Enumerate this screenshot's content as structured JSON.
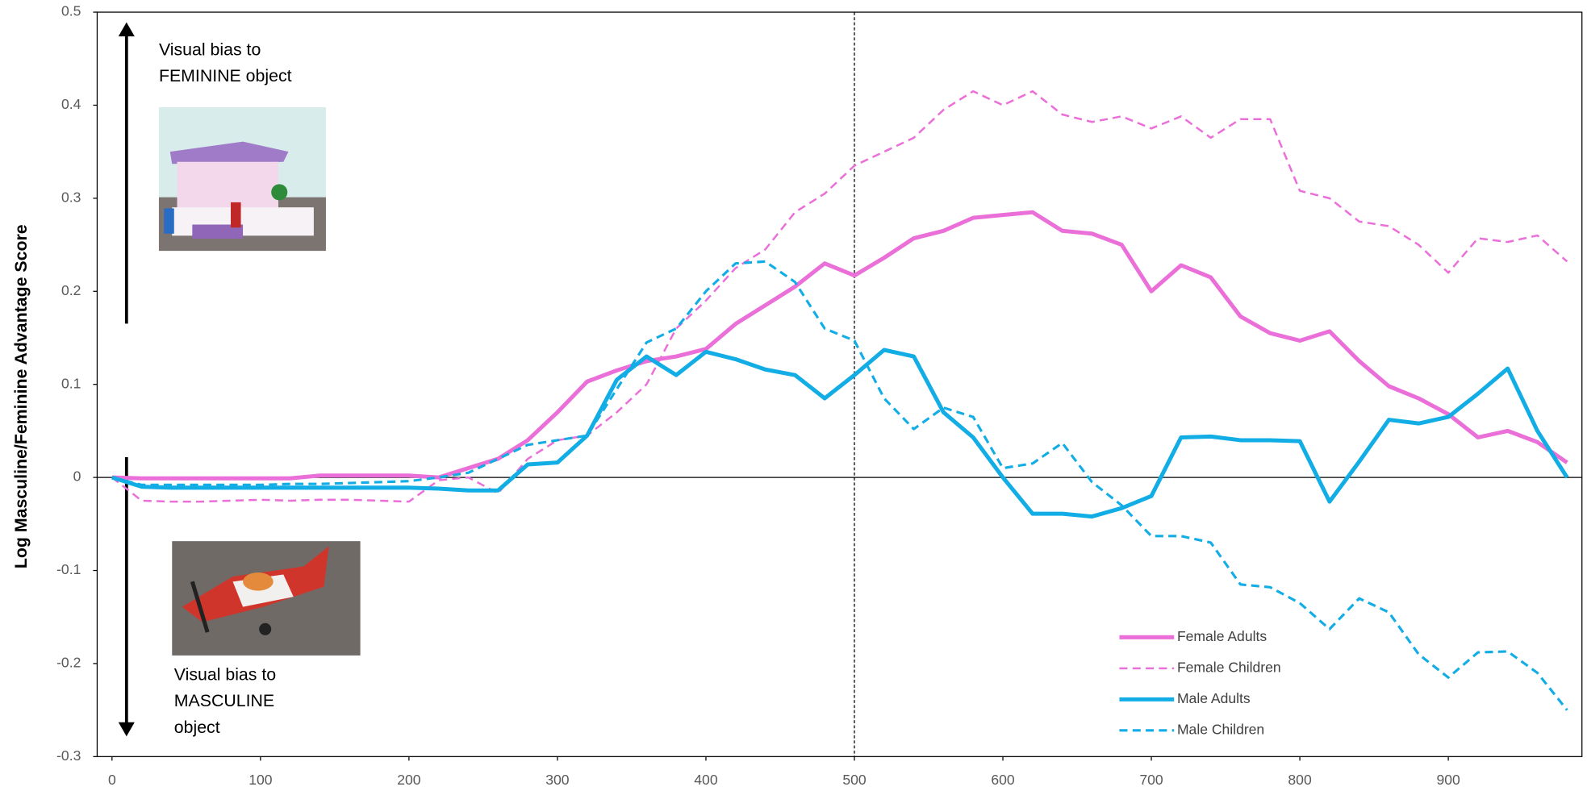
{
  "chart_data": {
    "type": "line",
    "y_label": "Log Masculine/Feminine Advantage Score",
    "x": [
      0,
      20,
      40,
      60,
      80,
      100,
      120,
      140,
      160,
      180,
      200,
      220,
      240,
      260,
      280,
      300,
      320,
      340,
      360,
      380,
      400,
      420,
      440,
      460,
      480,
      500,
      520,
      540,
      560,
      580,
      600,
      620,
      640,
      660,
      680,
      700,
      720,
      740,
      760,
      780,
      800,
      820,
      840,
      860,
      880,
      900,
      920,
      940,
      960,
      980
    ],
    "xlim": [
      -10,
      990
    ],
    "xticks": [
      0,
      100,
      200,
      300,
      400,
      500,
      600,
      700,
      800,
      900
    ],
    "ylim": [
      -0.3,
      0.5
    ],
    "yticks": [
      -0.3,
      -0.2,
      -0.1,
      0,
      0.1,
      0.2,
      0.3,
      0.4,
      0.5
    ],
    "vline": 500,
    "legend": "lower right",
    "annotations": [
      {
        "lines": [
          "Visual bias to",
          "FEMININE object"
        ]
      },
      {
        "lines": [
          "Visual bias to",
          "MASCULINE",
          "object"
        ]
      }
    ],
    "series": [
      {
        "name": "Female Adults",
        "color": "#ea6fd8",
        "style": "solid",
        "width": 4,
        "values": [
          0,
          -0.001,
          -0.001,
          -0.001,
          -0.001,
          -0.001,
          -0.001,
          0.002,
          0.002,
          0.002,
          0.002,
          0.0,
          0.01,
          0.02,
          0.04,
          0.07,
          0.103,
          0.115,
          0.125,
          0.13,
          0.138,
          0.165,
          0.185,
          0.205,
          0.23,
          0.217,
          0.236,
          0.257,
          0.265,
          0.279,
          0.282,
          0.285,
          0.265,
          0.262,
          0.25,
          0.2,
          0.228,
          0.215,
          0.173,
          0.155,
          0.147,
          0.157,
          0.125,
          0.098,
          0.085,
          0.068,
          0.043,
          0.05,
          0.038,
          0.016
        ]
      },
      {
        "name": "Female Children",
        "color": "#ea6fd8",
        "style": "dashed",
        "width": 2,
        "values": [
          0,
          -0.025,
          -0.026,
          -0.026,
          -0.025,
          -0.024,
          -0.025,
          -0.024,
          -0.024,
          -0.025,
          -0.026,
          -0.003,
          0.0,
          -0.017,
          0.02,
          0.04,
          0.045,
          0.07,
          0.1,
          0.16,
          0.19,
          0.225,
          0.245,
          0.285,
          0.305,
          0.335,
          0.35,
          0.365,
          0.395,
          0.415,
          0.4,
          0.415,
          0.39,
          0.382,
          0.388,
          0.375,
          0.388,
          0.365,
          0.385,
          0.385,
          0.308,
          0.3,
          0.275,
          0.27,
          0.25,
          0.22,
          0.257,
          0.253,
          0.26,
          0.232
        ]
      },
      {
        "name": "Male Adults",
        "color": "#13ade6",
        "style": "solid",
        "width": 4,
        "values": [
          0,
          -0.01,
          -0.011,
          -0.011,
          -0.011,
          -0.011,
          -0.011,
          -0.011,
          -0.011,
          -0.011,
          -0.011,
          -0.012,
          -0.014,
          -0.014,
          0.014,
          0.016,
          0.045,
          0.105,
          0.13,
          0.11,
          0.135,
          0.127,
          0.116,
          0.11,
          0.085,
          0.11,
          0.137,
          0.13,
          0.07,
          0.043,
          0.0,
          -0.039,
          -0.039,
          -0.042,
          -0.033,
          -0.02,
          0.043,
          0.044,
          0.04,
          0.04,
          0.039,
          -0.026,
          0.017,
          0.062,
          0.058,
          0.065,
          0.09,
          0.117,
          0.05,
          0.0
        ]
      },
      {
        "name": "Male Children",
        "color": "#13ade6",
        "style": "dashed",
        "width": 2.5,
        "values": [
          0,
          -0.008,
          -0.008,
          -0.008,
          -0.008,
          -0.008,
          -0.007,
          -0.007,
          -0.006,
          -0.005,
          -0.004,
          0.0,
          0.005,
          0.02,
          0.035,
          0.04,
          0.045,
          0.095,
          0.145,
          0.16,
          0.2,
          0.23,
          0.232,
          0.21,
          0.16,
          0.147,
          0.085,
          0.052,
          0.075,
          0.065,
          0.01,
          0.015,
          0.037,
          -0.005,
          -0.03,
          -0.063,
          -0.063,
          -0.07,
          -0.115,
          -0.118,
          -0.135,
          -0.163,
          -0.13,
          -0.145,
          -0.19,
          -0.215,
          -0.188,
          -0.187,
          -0.21,
          -0.25
        ]
      }
    ]
  }
}
